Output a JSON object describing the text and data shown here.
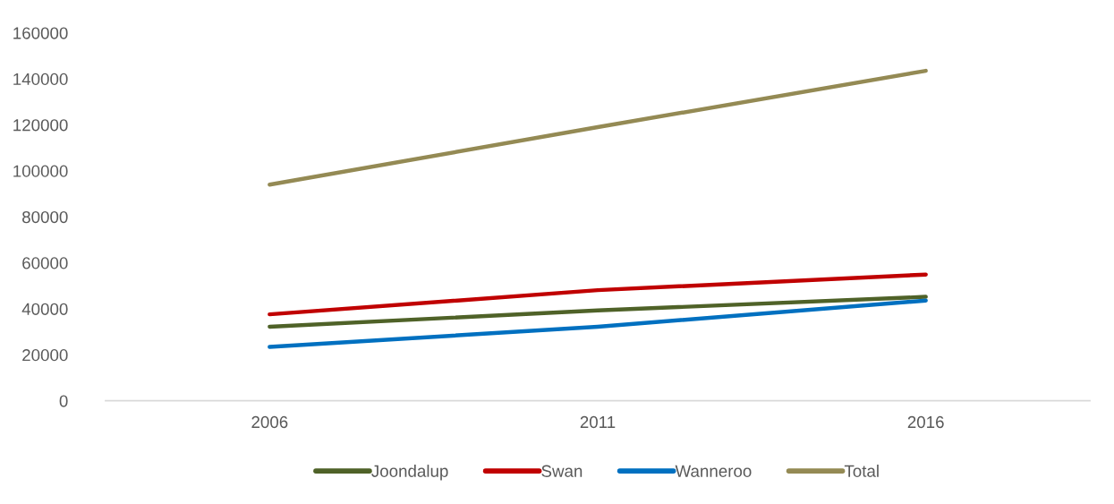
{
  "chart_data": {
    "type": "line",
    "categories": [
      "2006",
      "2011",
      "2016"
    ],
    "series": [
      {
        "name": "Joondalup",
        "color": "#4f6228",
        "values": [
          32200,
          39300,
          45200
        ]
      },
      {
        "name": "Swan",
        "color": "#c00000",
        "values": [
          37600,
          48100,
          54900
        ]
      },
      {
        "name": "Wanneroo",
        "color": "#0070c0",
        "values": [
          23400,
          32200,
          43600
        ]
      },
      {
        "name": "Total",
        "color": "#948a54",
        "values": [
          94000,
          119000,
          143500
        ]
      }
    ],
    "ylim": [
      0,
      160000
    ],
    "yticks": [
      0,
      20000,
      40000,
      60000,
      80000,
      100000,
      120000,
      140000,
      160000
    ],
    "grid": false,
    "legend": "bottom"
  }
}
